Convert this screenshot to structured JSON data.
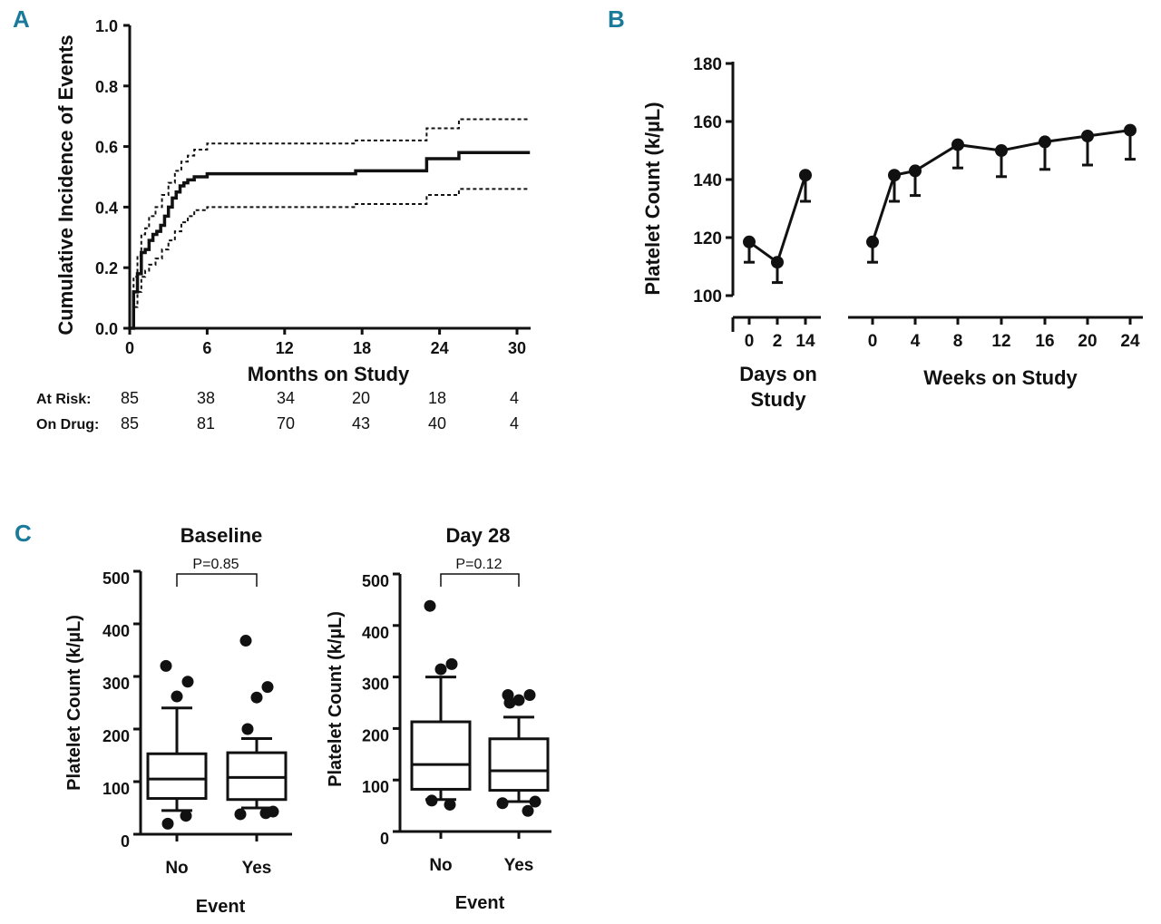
{
  "panels": {
    "a": "A",
    "b": "B",
    "c": "C"
  },
  "chart_data": [
    {
      "type": "line",
      "title": "",
      "xlabel": "Months on Study",
      "ylabel": "Cumulative Incidence of Events",
      "xlim": [
        0,
        30
      ],
      "ylim": [
        0.0,
        1.0
      ],
      "xticks": [
        "0",
        "6",
        "12",
        "18",
        "24",
        "30"
      ],
      "yticks": [
        "0.0",
        "0.2",
        "0.4",
        "0.6",
        "0.8",
        "1.0"
      ],
      "series": [
        {
          "name": "estimate",
          "style": "solid",
          "x": [
            0,
            0.3,
            0.6,
            0.9,
            1.2,
            1.5,
            1.8,
            2.1,
            2.4,
            2.7,
            3.0,
            3.3,
            3.6,
            3.9,
            4.2,
            4.5,
            5.0,
            6.0,
            17.5,
            23.0,
            25.5,
            31.0
          ],
          "y": [
            0,
            0.12,
            0.18,
            0.25,
            0.26,
            0.29,
            0.31,
            0.32,
            0.34,
            0.37,
            0.4,
            0.43,
            0.45,
            0.47,
            0.48,
            0.49,
            0.5,
            0.51,
            0.52,
            0.56,
            0.58,
            0.58
          ]
        },
        {
          "name": "upper CI",
          "style": "dashed",
          "x": [
            0,
            0.3,
            0.6,
            0.9,
            1.2,
            1.5,
            2.0,
            2.5,
            3.0,
            3.5,
            4.0,
            4.5,
            5.0,
            6.0,
            17.5,
            23.0,
            25.5,
            31.0
          ],
          "y": [
            0,
            0.17,
            0.24,
            0.31,
            0.33,
            0.37,
            0.4,
            0.44,
            0.48,
            0.52,
            0.55,
            0.57,
            0.59,
            0.61,
            0.62,
            0.66,
            0.69,
            0.69
          ]
        },
        {
          "name": "lower CI",
          "style": "dashed",
          "x": [
            0,
            0.3,
            0.6,
            0.9,
            1.2,
            1.5,
            2.0,
            2.5,
            3.0,
            3.5,
            4.0,
            4.5,
            5.0,
            6.0,
            17.5,
            23.0,
            25.5,
            31.0
          ],
          "y": [
            0,
            0.07,
            0.12,
            0.17,
            0.19,
            0.21,
            0.23,
            0.26,
            0.29,
            0.32,
            0.35,
            0.37,
            0.39,
            0.4,
            0.41,
            0.44,
            0.46,
            0.46
          ]
        }
      ],
      "risk_table": {
        "rows": [
          {
            "label": "At   Risk:",
            "values": [
              "85",
              "38",
              "34",
              "20",
              "18",
              "4"
            ]
          },
          {
            "label": "On Drug:",
            "values": [
              "85",
              "81",
              "70",
              "43",
              "40",
              "4"
            ]
          }
        ]
      }
    },
    {
      "type": "line",
      "title": "",
      "ylabel": "Platelet  Count (k/µL)",
      "ylim": [
        100,
        180
      ],
      "yticks": [
        "100",
        "120",
        "140",
        "160",
        "180"
      ],
      "segments": [
        {
          "xlabel_line1": "Days on",
          "xlabel_line2": "Study",
          "x": [
            "0",
            "2",
            "14"
          ],
          "y": [
            118.5,
            111.5,
            141.5
          ],
          "err": [
            7,
            7,
            9
          ]
        },
        {
          "xlabel": "Weeks on Study",
          "x": [
            "0",
            "4",
            "8",
            "12",
            "16",
            "20",
            "24"
          ],
          "y": [
            118.5,
            143,
            152,
            150,
            153,
            155,
            157
          ],
          "err": [
            7,
            8.5,
            8,
            9,
            9.5,
            10,
            10
          ]
        }
      ],
      "extra_point": {
        "x": "2",
        "y": 141.5,
        "err": 9
      }
    },
    {
      "type": "box",
      "title": "Baseline",
      "xlabel": "Event",
      "ylabel": "Platelet  Count (k/µL)",
      "ylim": [
        0,
        500
      ],
      "yticks": [
        "0",
        "100",
        "200",
        "300",
        "400",
        "500"
      ],
      "p_value": "P=0.85",
      "groups": [
        {
          "name": "No",
          "whisker_low": 45,
          "q1": 68,
          "median": 105,
          "q3": 153,
          "whisker_high": 240,
          "outliers": [
            320,
            290,
            262,
            20,
            35
          ]
        },
        {
          "name": "Yes",
          "whisker_low": 50,
          "q1": 66,
          "median": 108,
          "q3": 155,
          "whisker_high": 182,
          "outliers": [
            368,
            280,
            260,
            200,
            40,
            38,
            43
          ]
        }
      ]
    },
    {
      "type": "box",
      "title": "Day 28",
      "xlabel": "Event",
      "ylabel": "Platelet  Count (k/µL)",
      "ylim": [
        0,
        500
      ],
      "yticks": [
        "0",
        "100",
        "200",
        "300",
        "400",
        "500"
      ],
      "p_value": "P=0.12",
      "groups": [
        {
          "name": "No",
          "whisker_low": 62,
          "q1": 82,
          "median": 130,
          "q3": 213,
          "whisker_high": 300,
          "outliers": [
            438,
            325,
            315,
            60,
            52
          ]
        },
        {
          "name": "Yes",
          "whisker_low": 58,
          "q1": 80,
          "median": 118,
          "q3": 180,
          "whisker_high": 222,
          "outliers": [
            265,
            265,
            255,
            250,
            40,
            55,
            58
          ]
        }
      ]
    }
  ]
}
